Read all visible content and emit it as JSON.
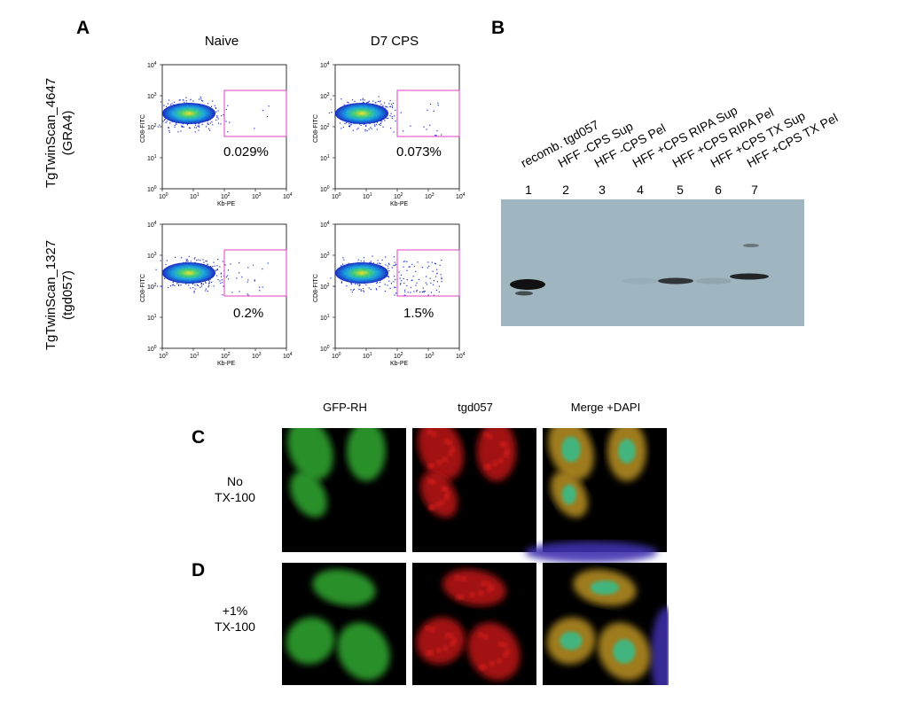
{
  "panel_a": {
    "letter": "A",
    "columns": [
      "Naive",
      "D7 CPS"
    ],
    "rows": [
      {
        "label_line1": "TgTwinScan_4647",
        "label_line2": "(GRA4)",
        "percents": [
          "0.029%",
          "0.073%"
        ]
      },
      {
        "label_line1": "TgTwinScan_1327",
        "label_line2": "(tgd057)",
        "percents": [
          "0.2%",
          "1.5%"
        ]
      }
    ],
    "y_axis_label": "CD8-FITC",
    "x_axis_label": "Kb-PE",
    "ticks": [
      "0",
      "1",
      "2",
      "3",
      "4"
    ]
  },
  "panel_b": {
    "letter": "B",
    "lanes": [
      {
        "num": "1",
        "label": "recomb. tgd057",
        "band_intensity": 1.0
      },
      {
        "num": "2",
        "label": "HFF -CPS Sup",
        "band_intensity": 0.0
      },
      {
        "num": "3",
        "label": "HFF -CPS Pel",
        "band_intensity": 0.0
      },
      {
        "num": "4",
        "label": "HFF +CPS RIPA Sup",
        "band_intensity": 0.05
      },
      {
        "num": "5",
        "label": "HFF +CPS RIPA Pel",
        "band_intensity": 0.8
      },
      {
        "num": "6",
        "label": "HFF +CPS TX Sup",
        "band_intensity": 0.1
      },
      {
        "num": "7",
        "label": "HFF +CPS TX Pel",
        "band_intensity": 0.9
      }
    ]
  },
  "panel_cd": {
    "columns": [
      "GFP-RH",
      "tgd057",
      "Merge +DAPI"
    ],
    "rows": [
      {
        "letter": "C",
        "label_line1": "No",
        "label_line2": "TX-100"
      },
      {
        "letter": "D",
        "label_line1": "+1%",
        "label_line2": "TX-100"
      }
    ]
  },
  "colors": {
    "gate": "#e040c0",
    "blot_bg": "#9fb6c0",
    "gfp": "#2ea02e",
    "red": "#c01818",
    "dapi": "#4030b0"
  }
}
